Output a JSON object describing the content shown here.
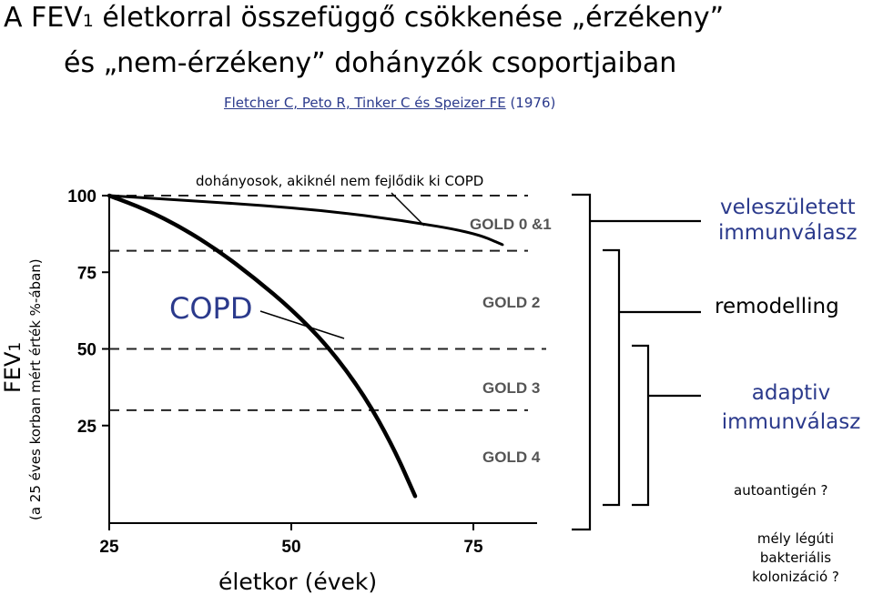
{
  "title": {
    "line1_a": "A  FEV",
    "line1_sub": "1",
    "line1_b": " életkorral  összefüggő  csökkenése „érzékeny”",
    "line2": "és  „nem-érzékeny”  dohányzók  csoportjaiban"
  },
  "citation": {
    "authors": "Fletcher C,  Peto R,  Tinker C  és  Speizer FE",
    "year": " (1976)"
  },
  "axes": {
    "ylabel_main": "FEV",
    "ylabel_main_sub": "1",
    "ylabel_secondary": "(a 25 éves korban mért érték %-ában)",
    "xlabel": "életkor (évek)"
  },
  "chart_data": {
    "type": "line",
    "x_ticks": [
      25,
      50,
      75
    ],
    "y_ticks": [
      25,
      50,
      75,
      100
    ],
    "xlim": [
      25,
      85
    ],
    "ylim": [
      0,
      100
    ],
    "thresholds": [
      {
        "label": "GOLD 0 &1",
        "y": 100
      },
      {
        "label": "",
        "y": 82
      },
      {
        "label": "GOLD 2",
        "y": 50
      },
      {
        "label": "GOLD 3",
        "y": 30
      },
      {
        "label": "GOLD 4",
        "y": 30
      }
    ],
    "gold_labels": [
      "GOLD 0 &1",
      "GOLD 2",
      "GOLD 3",
      "GOLD 4"
    ],
    "series": [
      {
        "name": "dohányosok, akiknél nem fejlődik ki COPD",
        "x": [
          25,
          35,
          45,
          55,
          65,
          75,
          79
        ],
        "y": [
          100,
          98.5,
          97,
          95,
          92,
          88,
          84
        ]
      },
      {
        "name": "COPD",
        "x": [
          25,
          30,
          35,
          40,
          45,
          50,
          55,
          60,
          64,
          67
        ],
        "y": [
          100,
          95.5,
          89.5,
          82,
          73,
          63,
          51,
          35,
          18,
          2
        ]
      }
    ]
  },
  "annotations": {
    "nonsensitive": "dohányosok, akiknél nem fejlődik ki COPD",
    "copd": "COPD"
  },
  "right_panel": {
    "innate_line1": "veleszületett",
    "innate_line2": "immunválasz",
    "remodelling": "remodelling",
    "adaptive_line1": "adaptiv",
    "adaptive_line2": "immunválasz",
    "autoantigen": "autoantigén ?",
    "colon_line1": "mély légúti",
    "colon_line2": "bakteriális",
    "colon_line3": "kolonizáció ?"
  },
  "colors": {
    "accent_blue": "#2b3a8c",
    "gold_grey": "#555555"
  }
}
